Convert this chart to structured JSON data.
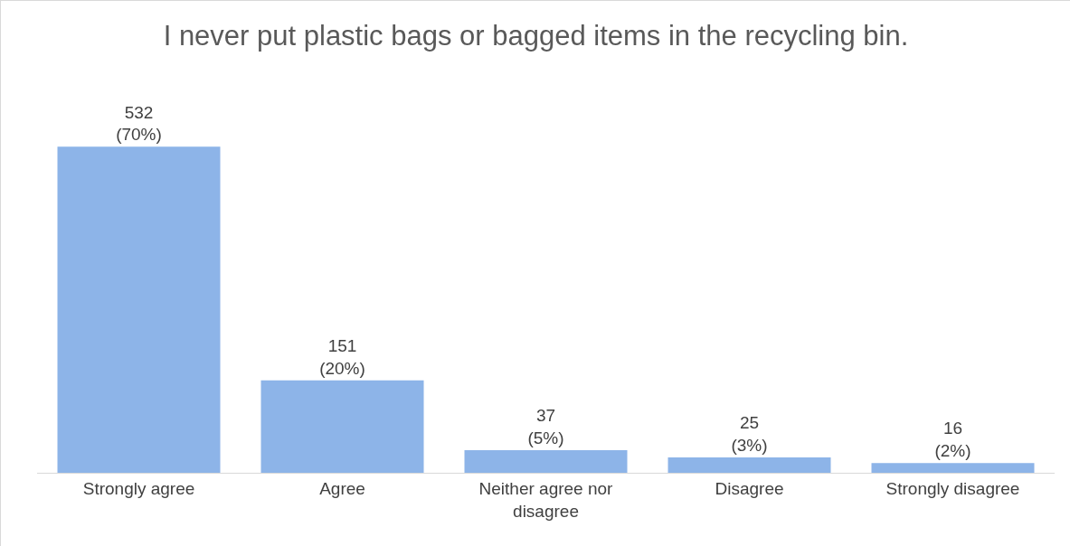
{
  "chart_data": {
    "type": "bar",
    "title": "I never put plastic bags or bagged items in the recycling bin.",
    "categories": [
      "Strongly agree",
      "Agree",
      "Neither agree nor disagree",
      "Disagree",
      "Strongly disagree"
    ],
    "values": [
      532,
      151,
      37,
      25,
      16
    ],
    "value_labels": [
      "532\n(70%)",
      "151\n(20%)",
      "37\n(5%)",
      "25\n(3%)",
      "16\n(2%)"
    ],
    "color": "#8db4e8",
    "grid": false
  }
}
